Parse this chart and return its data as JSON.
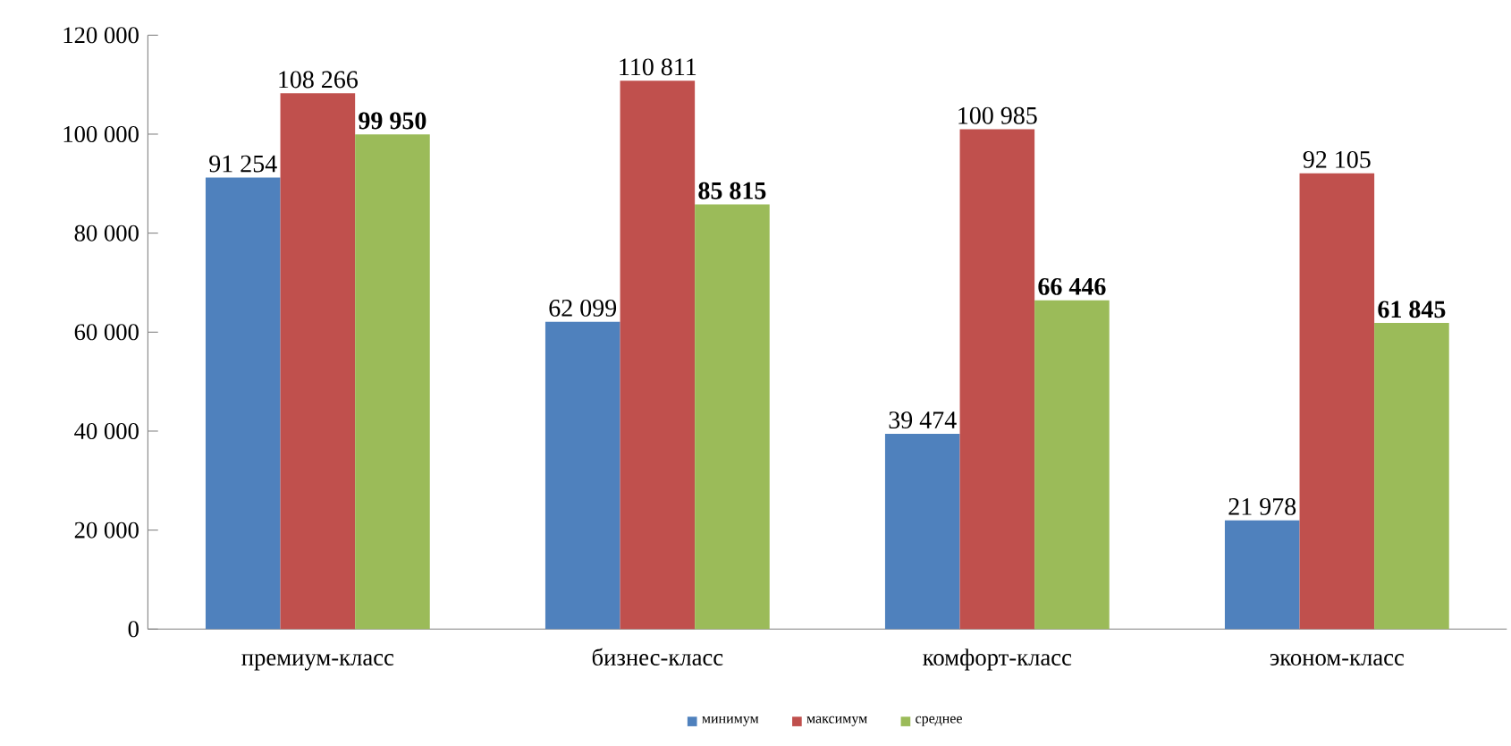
{
  "chart_data": {
    "type": "bar",
    "categories": [
      "премиум-класс",
      "бизнес-класс",
      "комфорт-класс",
      "эконом-класс"
    ],
    "series": [
      {
        "name": "минимум",
        "color": "#4f81bd",
        "values": [
          91254,
          62099,
          39474,
          21978
        ],
        "value_labels": [
          "91 254",
          "62 099",
          "39 474",
          "21 978"
        ]
      },
      {
        "name": "максимум",
        "color": "#c0504d",
        "values": [
          108266,
          110811,
          100985,
          92105
        ],
        "value_labels": [
          "108 266",
          "110 811",
          "100 985",
          "92 105"
        ]
      },
      {
        "name": "среднее",
        "color": "#9bbb59",
        "values": [
          99950,
          85815,
          66446,
          61845
        ],
        "value_labels": [
          "**99 950**",
          "**85 815**",
          "**66 446**",
          "**61 845**"
        ]
      }
    ],
    "ylim": [
      0,
      120000
    ],
    "yticks": [
      {
        "value": 0,
        "label": "0"
      },
      {
        "value": 20000,
        "label": "20 000"
      },
      {
        "value": 40000,
        "label": "40 000"
      },
      {
        "value": 60000,
        "label": "60 000"
      },
      {
        "value": 80000,
        "label": "80 000"
      },
      {
        "value": 100000,
        "label": "100 000"
      },
      {
        "value": 120000,
        "label": "120 000"
      }
    ],
    "legend": "bottom",
    "grid": false
  }
}
